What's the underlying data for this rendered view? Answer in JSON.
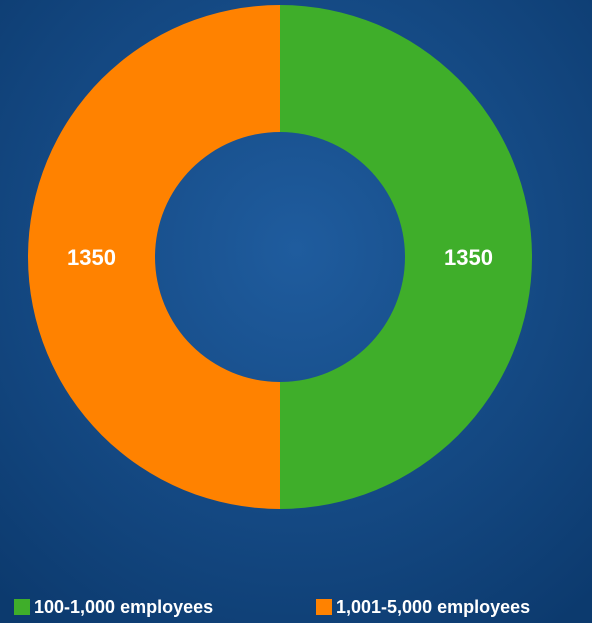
{
  "chart_data": {
    "type": "donut",
    "categories": [
      "100-1,000 employees",
      "1,001-5,000 employees"
    ],
    "values": [
      1350,
      1350
    ],
    "colors": [
      "#3fae2a",
      "#ff8200"
    ],
    "legend": "bottom"
  }
}
